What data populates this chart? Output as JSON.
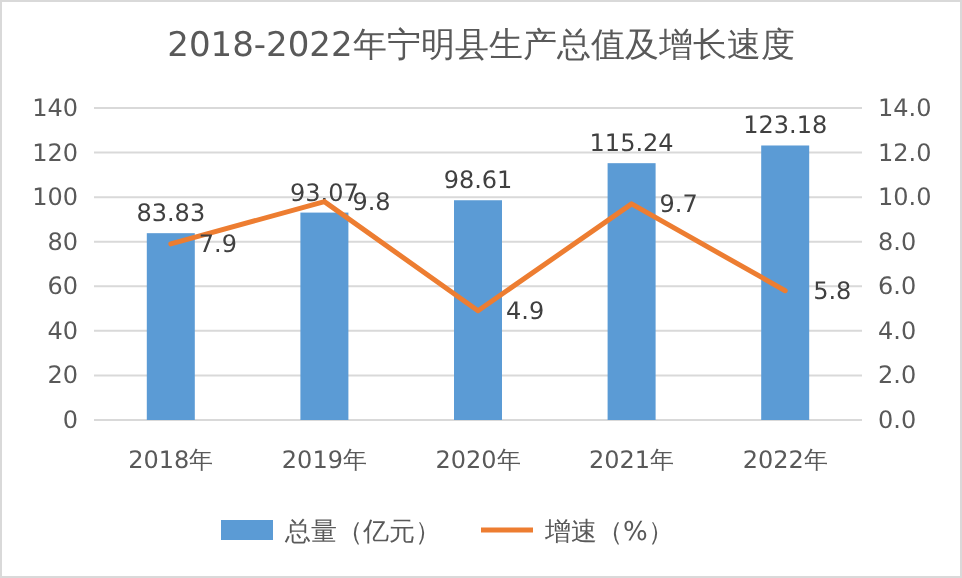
{
  "chart_data": {
    "type": "bar",
    "title": "2018-2022年宁明县生产总值及增长速度",
    "categories": [
      "2018年",
      "2019年",
      "2020年",
      "2021年",
      "2022年"
    ],
    "series": [
      {
        "name": "总量（亿元）",
        "color": "#5b9bd5",
        "values": [
          83.83,
          93.07,
          98.61,
          115.24,
          123.18
        ]
      },
      {
        "name": "增速（%）",
        "type": "line",
        "axis": "y2",
        "color": "#ed7d31",
        "values": [
          7.9,
          9.8,
          4.9,
          9.7,
          5.8
        ]
      }
    ],
    "ylim": [
      0,
      140
    ],
    "yticks": [
      0,
      20,
      40,
      60,
      80,
      100,
      120,
      140
    ],
    "y2lim": [
      0,
      14
    ],
    "y2ticks": [
      {
        "value": 0,
        "label": "0.0"
      },
      {
        "value": 2,
        "label": "2.0"
      },
      {
        "value": 4,
        "label": "4.0"
      },
      {
        "value": 6,
        "label": "6.0"
      },
      {
        "value": 8,
        "label": "8.0"
      },
      {
        "value": 10,
        "label": "10.0"
      },
      {
        "value": 12,
        "label": "12.0"
      },
      {
        "value": 14,
        "label": "14.0"
      }
    ],
    "grid": "y",
    "legend": "bottom",
    "data_labels": true,
    "marker": "none",
    "line_style": "solid"
  }
}
